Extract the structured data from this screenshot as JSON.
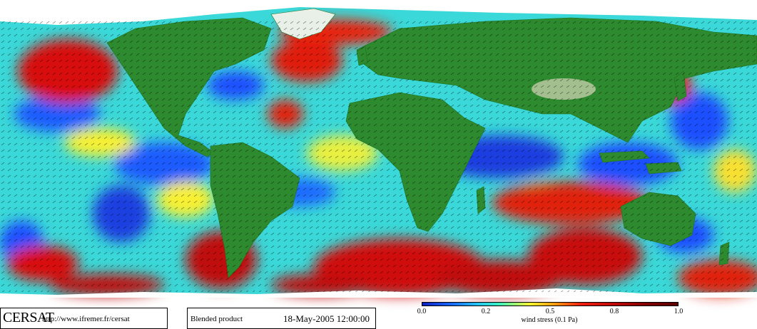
{
  "map": {
    "logo": "CERSAT",
    "url": "http://www.ifremer.fr/cersat",
    "product": "Blended product",
    "date": "18-May-2005 12:00:00",
    "scale": {
      "title": "wind stress (0.1 Pa)",
      "ticks": [
        "0.0",
        "0.2",
        "0.5",
        "0.8",
        "1.0"
      ]
    },
    "colors": {
      "ocean_low": "#1020c0",
      "ocean_mid": "#26c8f0",
      "ocean_yellow": "#f8f830",
      "ocean_high": "#e01010",
      "land": "#2e8a2e",
      "ice": "#ffffff"
    }
  }
}
